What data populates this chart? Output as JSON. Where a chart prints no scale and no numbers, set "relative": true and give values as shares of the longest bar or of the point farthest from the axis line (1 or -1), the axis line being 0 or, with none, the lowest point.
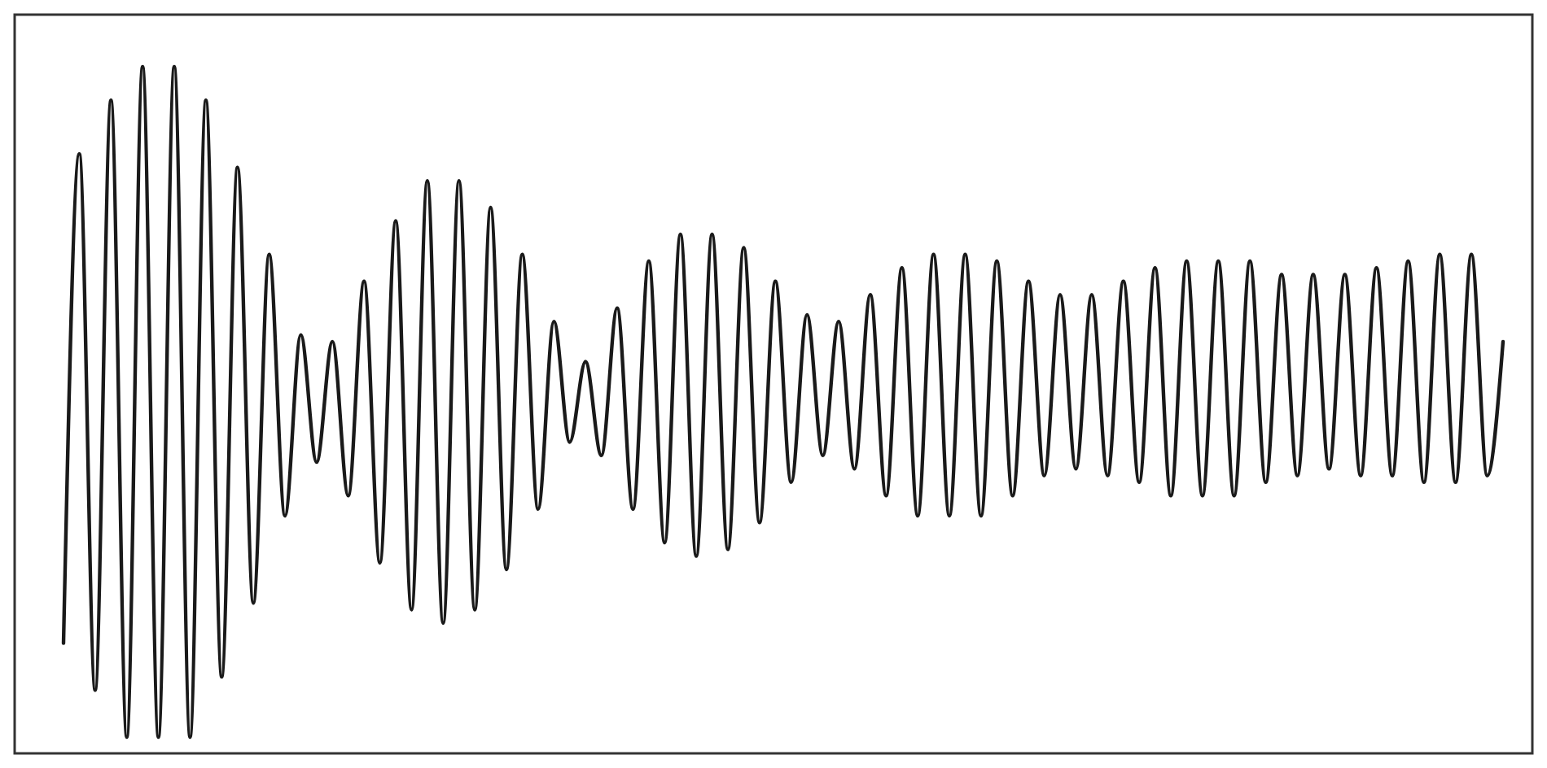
{
  "chart_data": {
    "type": "line",
    "relative": true,
    "color": "#1a1a1a",
    "categories": [
      null,
      null,
      null,
      null,
      null,
      null,
      null,
      null,
      null,
      null,
      null,
      null,
      null,
      null,
      null,
      null,
      null,
      null,
      null,
      null,
      null,
      null,
      null,
      null,
      null,
      null,
      null,
      null,
      null,
      null,
      null,
      null,
      null,
      null,
      null,
      null,
      null,
      null,
      null,
      null,
      null,
      null,
      null,
      null,
      null,
      null,
      null,
      null,
      null,
      null,
      null,
      null,
      null,
      null,
      null,
      null,
      null,
      null,
      null,
      null,
      null,
      null,
      null,
      null,
      null,
      null,
      null,
      null,
      null,
      null,
      null,
      null,
      null,
      null,
      null,
      null,
      null,
      null,
      null,
      null,
      null,
      null,
      null,
      null,
      null,
      null,
      null,
      null,
      null,
      null,
      null,
      null
    ],
    "values": [
      0.14,
      0.87,
      0.07,
      0.95,
      0.0,
      1.0,
      0,
      1,
      0.0,
      0.95,
      0.09,
      0.85,
      0.2,
      0.72,
      0.33,
      0.6,
      0.41,
      0.59,
      0.36,
      0.68,
      0.26,
      0.77,
      0.19,
      0.83,
      0.17,
      0.83,
      0.19,
      0.79,
      0.25,
      0.72,
      0.34,
      0.62,
      0.44,
      0.56,
      0.42,
      0.64,
      0.34,
      0.71,
      0.29,
      0.75,
      0.27,
      0.75,
      0.28,
      0.73,
      0.32,
      0.68,
      0.38,
      0.63,
      0.42,
      0.62,
      0.4,
      0.66,
      0.36,
      0.7,
      0.33,
      0.72,
      0.33,
      0.72,
      0.33,
      0.71,
      0.36,
      0.68,
      0.39,
      0.66,
      0.4,
      0.66,
      0.39,
      0.68,
      0.38,
      0.7,
      0.36,
      0.71,
      0.36,
      0.71,
      0.36,
      0.71,
      0.38,
      0.69,
      0.39,
      0.69,
      0.4,
      0.69,
      0.39,
      0.7,
      0.39,
      0.71,
      0.38,
      0.72,
      0.38,
      0.72,
      0.39,
      0.59
    ]
  }
}
